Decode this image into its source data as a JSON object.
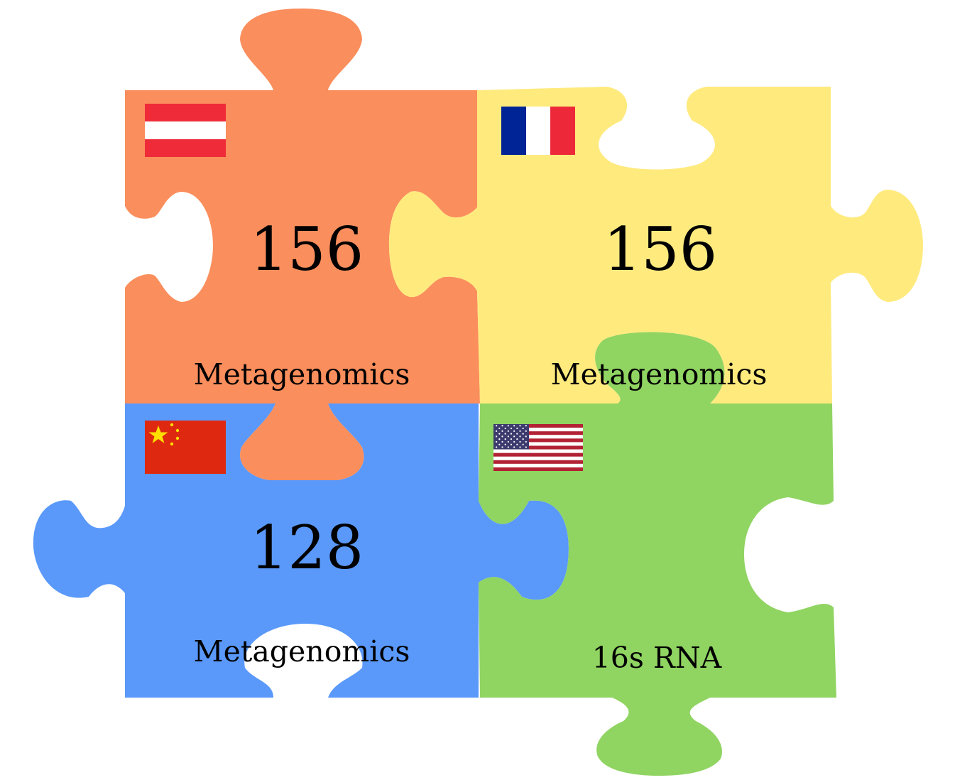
{
  "colors": {
    "orange": "#fa8e5c",
    "yellow": "#ffea7e",
    "blue": "#5a99fa",
    "green": "#90d462",
    "text": "#000000"
  },
  "pieces": [
    {
      "country": "Austria",
      "flag": "austria-flag-icon",
      "color": "#fa8e5c",
      "value": "156",
      "method": "Metagenomics"
    },
    {
      "country": "France",
      "flag": "france-flag-icon",
      "color": "#ffea7e",
      "value": "156",
      "method": "Metagenomics"
    },
    {
      "country": "China",
      "flag": "china-flag-icon",
      "color": "#5a99fa",
      "value": "128",
      "method": "Metagenomics"
    },
    {
      "country": "USA",
      "flag": "usa-flag-icon",
      "color": "#90d462",
      "value": "",
      "method": "16s RNA"
    }
  ]
}
